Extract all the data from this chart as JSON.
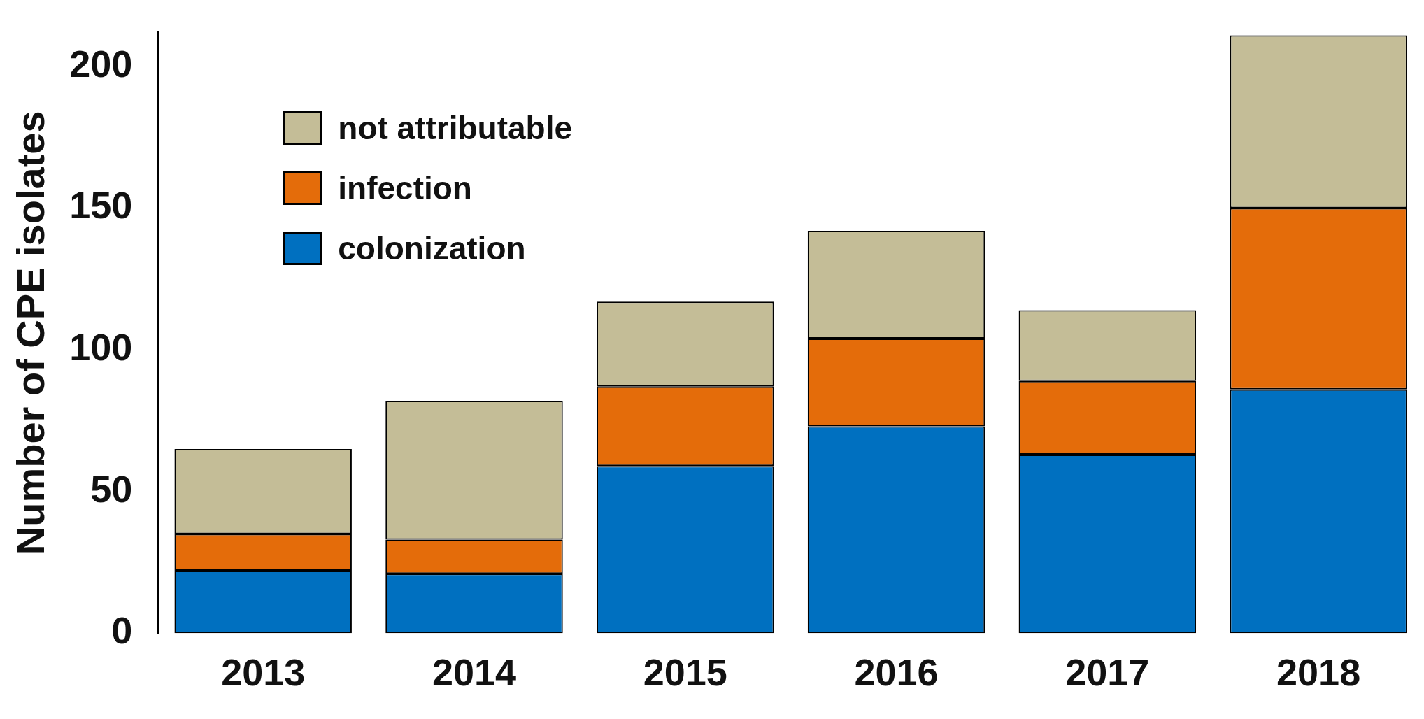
{
  "chart_data": {
    "type": "bar",
    "ylabel": "Number of CPE isolates",
    "categories": [
      "2013",
      "2014",
      "2015",
      "2016",
      "2017",
      "2018"
    ],
    "series": [
      {
        "name": "colonization",
        "color": "#0070c0",
        "values": [
          22,
          21,
          59,
          73,
          63,
          86
        ]
      },
      {
        "name": "infection",
        "color": "#e46c0a",
        "values": [
          13,
          12,
          28,
          31,
          26,
          64
        ]
      },
      {
        "name": "not attributable",
        "color": "#c4bd97",
        "values": [
          30,
          49,
          30,
          38,
          25,
          61
        ]
      }
    ],
    "stacked": true,
    "ylim": [
      0,
      212
    ],
    "yticks": [
      0,
      50,
      100,
      150,
      200
    ],
    "grid": false,
    "legend": "top left"
  }
}
